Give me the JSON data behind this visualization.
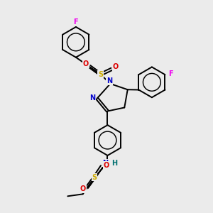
{
  "background_color": "#ebebeb",
  "fig_w": 3.0,
  "fig_h": 3.0,
  "dpi": 100,
  "colors": {
    "C": "#000000",
    "N": "#0000cc",
    "O": "#dd0000",
    "S": "#ccaa00",
    "F": "#ee00ee",
    "H": "#007070",
    "bond": "#000000"
  },
  "lw": 1.4,
  "ring_r": 0.72,
  "ag": 0.055,
  "fs": 7.0
}
